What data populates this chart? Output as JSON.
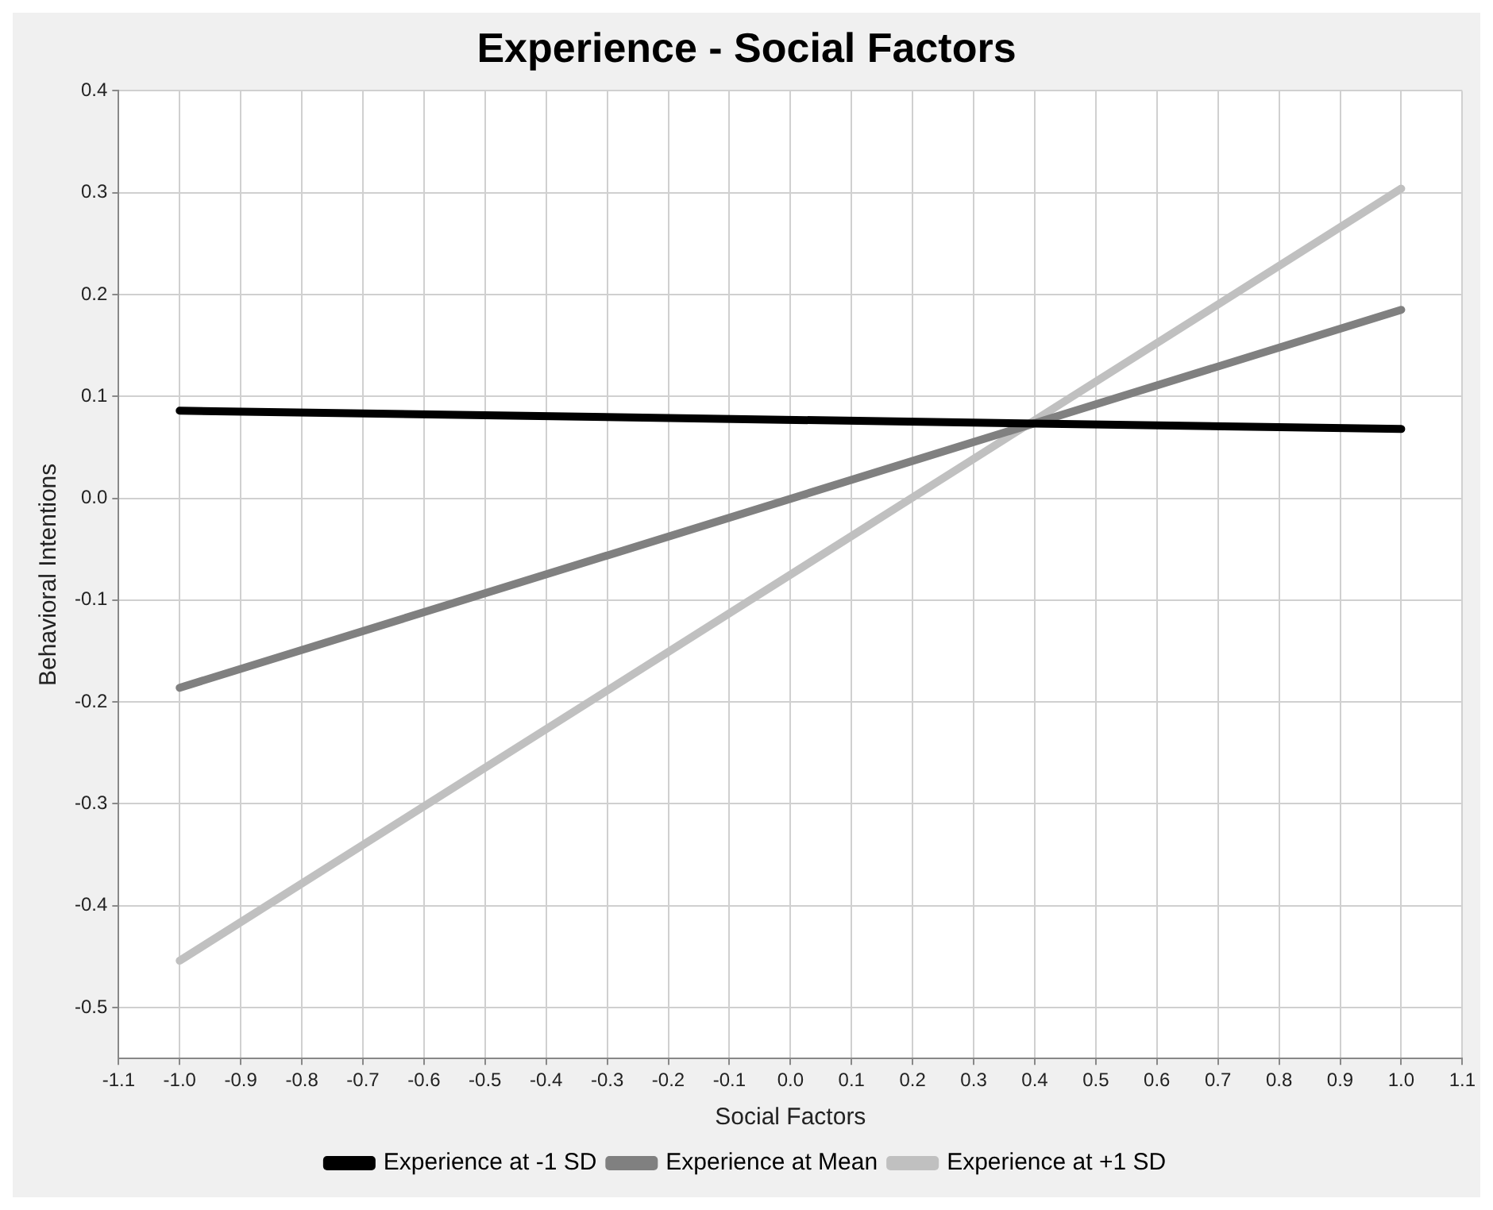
{
  "chart_data": {
    "type": "line",
    "title": "Experience - Social Factors",
    "xlabel": "Social Factors",
    "ylabel": "Behavioral Intentions",
    "x": [
      -1.0,
      1.0
    ],
    "series": [
      {
        "name": "Experience at -1 SD",
        "color": "#000000",
        "values": [
          0.086,
          0.068
        ]
      },
      {
        "name": "Experience at Mean",
        "color": "#808080",
        "values": [
          -0.186,
          0.185
        ]
      },
      {
        "name": "Experience at +1 SD",
        "color": "#c0c0c0",
        "values": [
          -0.454,
          0.304
        ]
      }
    ],
    "xlim": [
      -1.1,
      1.1
    ],
    "xticks": [
      -1.1,
      {
        "value": -1.0,
        "label": "-1.0"
      },
      -0.9,
      -0.8,
      -0.7,
      -0.6,
      -0.5,
      -0.4,
      -0.3,
      -0.2,
      -0.1,
      {
        "value": 0,
        "label": "0.0"
      },
      0.1,
      0.2,
      0.3,
      0.4,
      0.5,
      0.6,
      0.7,
      0.8,
      0.9,
      {
        "value": 1.0,
        "label": "1.0"
      },
      1.1
    ],
    "ylim": [
      -0.55,
      0.4
    ],
    "yticks": [
      -0.5,
      -0.4,
      -0.3,
      -0.2,
      -0.1,
      {
        "value": 0,
        "label": "0.0"
      },
      0.1,
      0.2,
      0.3,
      0.4
    ],
    "grid": true,
    "legend": "bottom",
    "marker": "none",
    "line_style": "solid"
  }
}
